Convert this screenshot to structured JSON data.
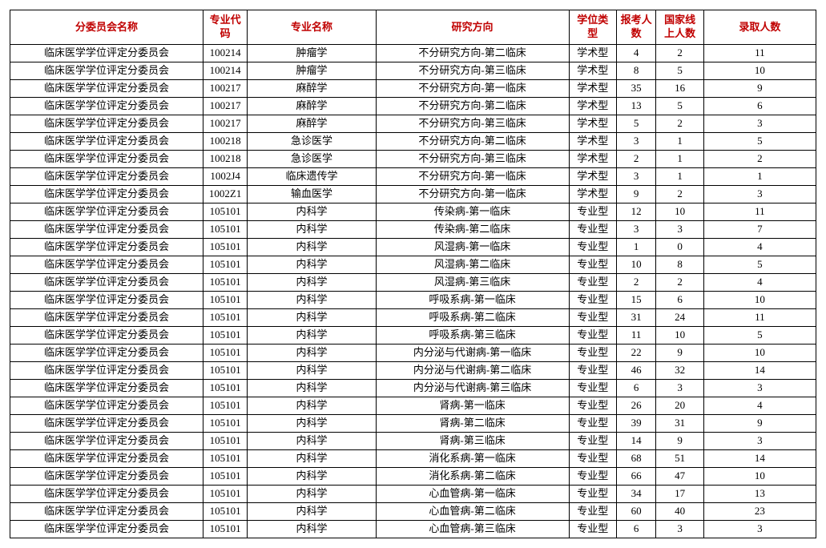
{
  "header_text_color": "#c00000",
  "border_color": "#000000",
  "background_color": "#ffffff",
  "columns": [
    {
      "label": "分委员会名称",
      "class": "col-committee"
    },
    {
      "label": "专业代码",
      "class": "col-code"
    },
    {
      "label": "专业名称",
      "class": "col-major"
    },
    {
      "label": "研究方向",
      "class": "col-direction"
    },
    {
      "label": "学位类型",
      "class": "col-degree"
    },
    {
      "label": "报考人数",
      "class": "col-apply"
    },
    {
      "label": "国家线上人数",
      "class": "col-line"
    },
    {
      "label": "录取人数",
      "class": "col-admit"
    }
  ],
  "rows": [
    [
      "临床医学学位评定分委员会",
      "100214",
      "肿瘤学",
      "不分研究方向-第二临床",
      "学术型",
      "4",
      "2",
      "11"
    ],
    [
      "临床医学学位评定分委员会",
      "100214",
      "肿瘤学",
      "不分研究方向-第三临床",
      "学术型",
      "8",
      "5",
      "10"
    ],
    [
      "临床医学学位评定分委员会",
      "100217",
      "麻醉学",
      "不分研究方向-第一临床",
      "学术型",
      "35",
      "16",
      "9"
    ],
    [
      "临床医学学位评定分委员会",
      "100217",
      "麻醉学",
      "不分研究方向-第二临床",
      "学术型",
      "13",
      "5",
      "6"
    ],
    [
      "临床医学学位评定分委员会",
      "100217",
      "麻醉学",
      "不分研究方向-第三临床",
      "学术型",
      "5",
      "2",
      "3"
    ],
    [
      "临床医学学位评定分委员会",
      "100218",
      "急诊医学",
      "不分研究方向-第二临床",
      "学术型",
      "3",
      "1",
      "5"
    ],
    [
      "临床医学学位评定分委员会",
      "100218",
      "急诊医学",
      "不分研究方向-第三临床",
      "学术型",
      "2",
      "1",
      "2"
    ],
    [
      "临床医学学位评定分委员会",
      "1002J4",
      "临床遗传学",
      "不分研究方向-第一临床",
      "学术型",
      "3",
      "1",
      "1"
    ],
    [
      "临床医学学位评定分委员会",
      "1002Z1",
      "输血医学",
      "不分研究方向-第一临床",
      "学术型",
      "9",
      "2",
      "3"
    ],
    [
      "临床医学学位评定分委员会",
      "105101",
      "内科学",
      "传染病-第一临床",
      "专业型",
      "12",
      "10",
      "11"
    ],
    [
      "临床医学学位评定分委员会",
      "105101",
      "内科学",
      "传染病-第二临床",
      "专业型",
      "3",
      "3",
      "7"
    ],
    [
      "临床医学学位评定分委员会",
      "105101",
      "内科学",
      "风湿病-第一临床",
      "专业型",
      "1",
      "0",
      "4"
    ],
    [
      "临床医学学位评定分委员会",
      "105101",
      "内科学",
      "风湿病-第二临床",
      "专业型",
      "10",
      "8",
      "5"
    ],
    [
      "临床医学学位评定分委员会",
      "105101",
      "内科学",
      "风湿病-第三临床",
      "专业型",
      "2",
      "2",
      "4"
    ],
    [
      "临床医学学位评定分委员会",
      "105101",
      "内科学",
      "呼吸系病-第一临床",
      "专业型",
      "15",
      "6",
      "10"
    ],
    [
      "临床医学学位评定分委员会",
      "105101",
      "内科学",
      "呼吸系病-第二临床",
      "专业型",
      "31",
      "24",
      "11"
    ],
    [
      "临床医学学位评定分委员会",
      "105101",
      "内科学",
      "呼吸系病-第三临床",
      "专业型",
      "11",
      "10",
      "5"
    ],
    [
      "临床医学学位评定分委员会",
      "105101",
      "内科学",
      "内分泌与代谢病-第一临床",
      "专业型",
      "22",
      "9",
      "10"
    ],
    [
      "临床医学学位评定分委员会",
      "105101",
      "内科学",
      "内分泌与代谢病-第二临床",
      "专业型",
      "46",
      "32",
      "14"
    ],
    [
      "临床医学学位评定分委员会",
      "105101",
      "内科学",
      "内分泌与代谢病-第三临床",
      "专业型",
      "6",
      "3",
      "3"
    ],
    [
      "临床医学学位评定分委员会",
      "105101",
      "内科学",
      "肾病-第一临床",
      "专业型",
      "26",
      "20",
      "4"
    ],
    [
      "临床医学学位评定分委员会",
      "105101",
      "内科学",
      "肾病-第二临床",
      "专业型",
      "39",
      "31",
      "9"
    ],
    [
      "临床医学学位评定分委员会",
      "105101",
      "内科学",
      "肾病-第三临床",
      "专业型",
      "14",
      "9",
      "3"
    ],
    [
      "临床医学学位评定分委员会",
      "105101",
      "内科学",
      "消化系病-第一临床",
      "专业型",
      "68",
      "51",
      "14"
    ],
    [
      "临床医学学位评定分委员会",
      "105101",
      "内科学",
      "消化系病-第二临床",
      "专业型",
      "66",
      "47",
      "10"
    ],
    [
      "临床医学学位评定分委员会",
      "105101",
      "内科学",
      "心血管病-第一临床",
      "专业型",
      "34",
      "17",
      "13"
    ],
    [
      "临床医学学位评定分委员会",
      "105101",
      "内科学",
      "心血管病-第二临床",
      "专业型",
      "60",
      "40",
      "23"
    ],
    [
      "临床医学学位评定分委员会",
      "105101",
      "内科学",
      "心血管病-第三临床",
      "专业型",
      "6",
      "3",
      "3"
    ]
  ]
}
